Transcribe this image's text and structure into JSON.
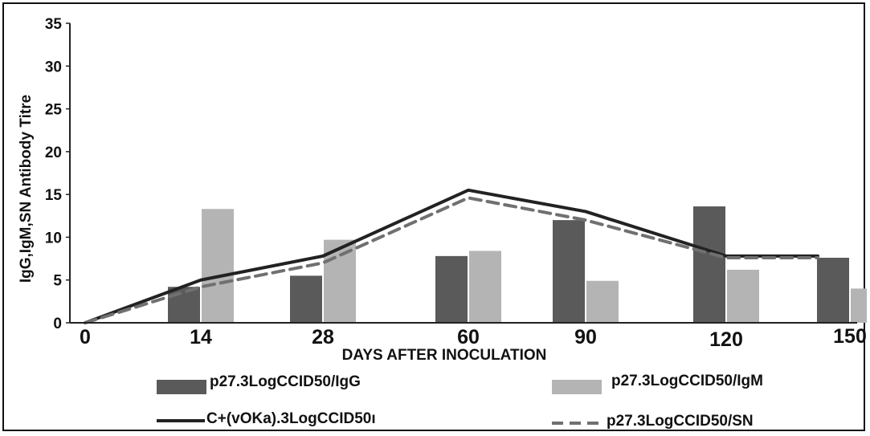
{
  "chart_data": {
    "type": "bar",
    "categories": [
      "0",
      "14",
      "28",
      "60",
      "90",
      "120",
      "150"
    ],
    "xlabel": "DAYS AFTER INOCULATION",
    "ylabel": "IgG,IgM,SN Antibody Titre",
    "ylim": [
      0,
      35
    ],
    "yticks": [
      0,
      5,
      10,
      15,
      20,
      25,
      30,
      35
    ],
    "grid": false,
    "legend_position": "bottom",
    "series": [
      {
        "name": "p27.3LogCCID50/IgG",
        "kind": "bar",
        "color": "#5a5a5a",
        "values": [
          0,
          4.2,
          5.5,
          7.8,
          12,
          13.6,
          7.6
        ]
      },
      {
        "name": "p27.3LogCCID50/IgM",
        "kind": "bar",
        "color": "#b4b4b4",
        "values": [
          0,
          13.3,
          9.7,
          8.4,
          4.9,
          6.2,
          4.0
        ]
      },
      {
        "name": "C+(vOKa).3LogCCID50ı",
        "kind": "line",
        "color": "#222222",
        "dash": "solid",
        "values": [
          0,
          5,
          7.8,
          15.5,
          13,
          7.8,
          7.8
        ]
      },
      {
        "name": "p27.3LogCCID50/SN",
        "kind": "line",
        "color": "#707070",
        "dash": "dashed",
        "values": [
          0,
          4.2,
          7,
          14.6,
          12,
          7.6,
          7.6
        ]
      }
    ]
  }
}
